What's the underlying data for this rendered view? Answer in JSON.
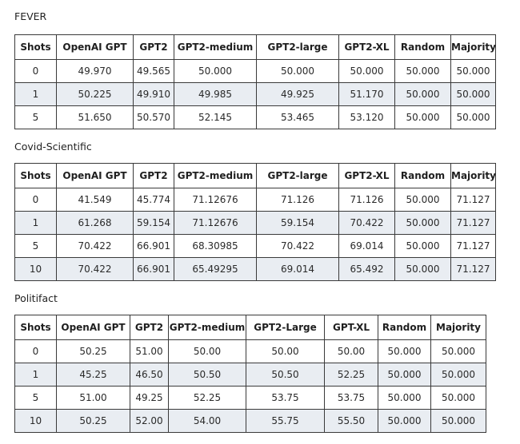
{
  "tables": [
    {
      "title": "FEVER",
      "headers": [
        "Shots",
        "OpenAI GPT",
        "GPT2",
        "GPT2-medium",
        "GPT2-large",
        "GPT2-XL",
        "Random",
        "Majority"
      ],
      "rows": [
        [
          "0",
          "49.970",
          "49.565",
          "50.000",
          "50.000",
          "50.000",
          "50.000",
          "50.000"
        ],
        [
          "1",
          "50.225",
          "49.910",
          "49.985",
          "49.925",
          "51.170",
          "50.000",
          "50.000"
        ],
        [
          "5",
          "51.650",
          "50.570",
          "52.145",
          "53.465",
          "53.120",
          "50.000",
          "50.000"
        ]
      ]
    },
    {
      "title": "Covid-Scientific",
      "headers": [
        "Shots",
        "OpenAI GPT",
        "GPT2",
        "GPT2-medium",
        "GPT2-large",
        "GPT2-XL",
        "Random",
        "Majority"
      ],
      "rows": [
        [
          "0",
          "41.549",
          "45.774",
          "71.12676",
          "71.126",
          "71.126",
          "50.000",
          "71.127"
        ],
        [
          "1",
          "61.268",
          "59.154",
          "71.12676",
          "59.154",
          "70.422",
          "50.000",
          "71.127"
        ],
        [
          "5",
          "70.422",
          "66.901",
          "68.30985",
          "70.422",
          "69.014",
          "50.000",
          "71.127"
        ],
        [
          "10",
          "70.422",
          "66.901",
          "65.49295",
          "69.014",
          "65.492",
          "50.000",
          "71.127"
        ]
      ]
    },
    {
      "title": "Politifact",
      "headers": [
        "Shots",
        "OpenAI GPT",
        "GPT2",
        "GPT2-medium",
        "GPT2-Large",
        "GPT-XL",
        "Random",
        "Majority"
      ],
      "rows": [
        [
          "0",
          "50.25",
          "51.00",
          "50.00",
          "50.00",
          "50.00",
          "50.000",
          "50.000"
        ],
        [
          "1",
          "45.25",
          "46.50",
          "50.50",
          "50.50",
          "52.25",
          "50.000",
          "50.000"
        ],
        [
          "5",
          "51.00",
          "49.25",
          "52.25",
          "53.75",
          "53.75",
          "50.000",
          "50.000"
        ],
        [
          "10",
          "50.25",
          "52.00",
          "54.00",
          "55.75",
          "55.50",
          "50.000",
          "50.000"
        ]
      ]
    }
  ]
}
